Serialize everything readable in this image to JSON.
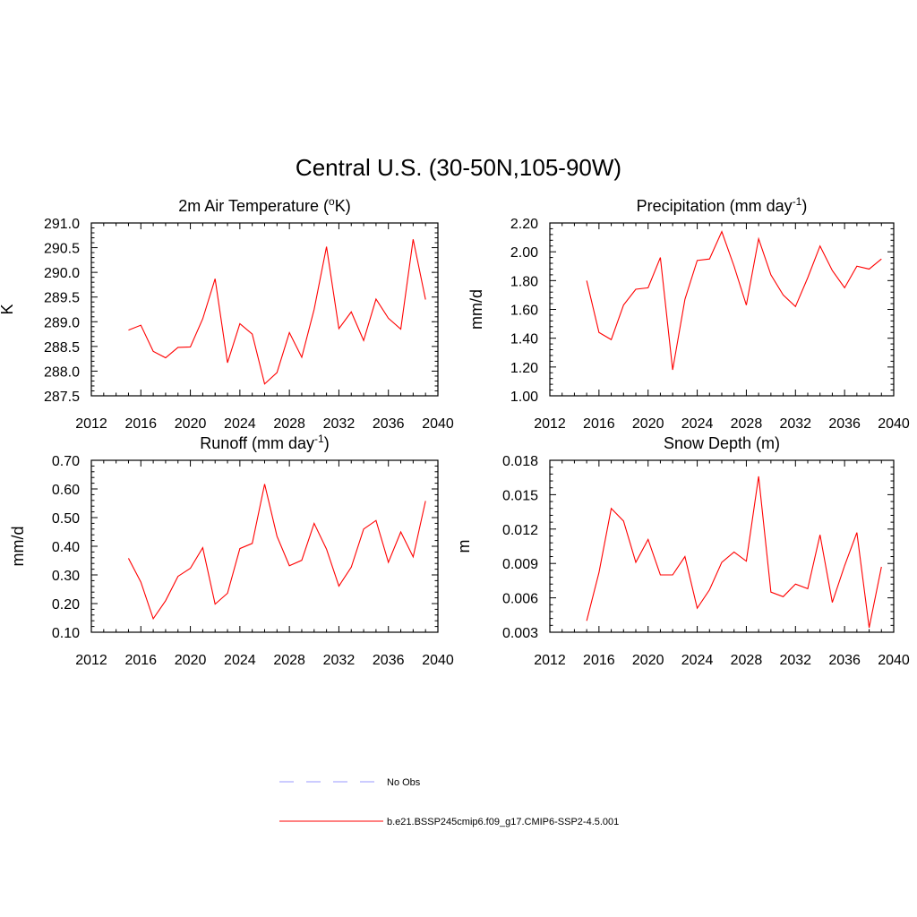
{
  "figure": {
    "title": "Central U.S. (30-50N,105-90W)"
  },
  "colors": {
    "model_line": "#ff0000",
    "obs_line": "#9999ff",
    "axes": "#000000",
    "background": "#ffffff"
  },
  "legend": {
    "items": [
      {
        "label": "No Obs",
        "style": "dashed",
        "color": "#9999ff"
      },
      {
        "label": "b.e21.BSSP245cmip6.f09_g17.CMIP6-SSP2-4.5.001",
        "style": "solid",
        "color": "#ff0000"
      }
    ]
  },
  "chart_data": [
    {
      "type": "line",
      "title": "2m Air Temperature (",
      "title_sup": "o",
      "title_suffix": "K)",
      "xlabel": "",
      "ylabel": "K",
      "xlim": [
        2012,
        2040
      ],
      "ylim": [
        287.5,
        291.0
      ],
      "x_ticks": [
        "2012",
        "2016",
        "2020",
        "2024",
        "2028",
        "2032",
        "2036",
        "2040"
      ],
      "y_ticks": [
        "287.5",
        "288.0",
        "288.5",
        "289.0",
        "289.5",
        "290.0",
        "290.5",
        "291.0"
      ],
      "x": [
        2015,
        2016,
        2017,
        2018,
        2019,
        2020,
        2021,
        2022,
        2023,
        2024,
        2025,
        2026,
        2027,
        2028,
        2029,
        2030,
        2031,
        2032,
        2033,
        2034,
        2035,
        2036,
        2037,
        2038,
        2039
      ],
      "series": [
        {
          "values": [
            288.83,
            288.93,
            288.4,
            288.27,
            288.48,
            288.49,
            289.06,
            289.87,
            288.17,
            288.96,
            288.75,
            287.74,
            287.97,
            288.78,
            288.28,
            289.25,
            290.52,
            288.86,
            289.2,
            288.62,
            289.46,
            289.07,
            288.85,
            290.67,
            289.45
          ]
        }
      ]
    },
    {
      "type": "line",
      "title": "Precipitation (mm day",
      "title_sup": "-1",
      "title_suffix": ")",
      "xlabel": "",
      "ylabel": "mm/d",
      "xlim": [
        2012,
        2040
      ],
      "ylim": [
        1.0,
        2.2
      ],
      "x_ticks": [
        "2012",
        "2016",
        "2020",
        "2024",
        "2028",
        "2032",
        "2036",
        "2040"
      ],
      "y_ticks": [
        "1.00",
        "1.20",
        "1.40",
        "1.60",
        "1.80",
        "2.00",
        "2.20"
      ],
      "x": [
        2015,
        2016,
        2017,
        2018,
        2019,
        2020,
        2021,
        2022,
        2023,
        2024,
        2025,
        2026,
        2027,
        2028,
        2029,
        2030,
        2031,
        2032,
        2033,
        2034,
        2035,
        2036,
        2037,
        2038,
        2039
      ],
      "series": [
        {
          "values": [
            1.8,
            1.44,
            1.39,
            1.63,
            1.74,
            1.75,
            1.96,
            1.18,
            1.67,
            1.94,
            1.95,
            2.14,
            1.9,
            1.63,
            2.09,
            1.84,
            1.7,
            1.62,
            1.82,
            2.04,
            1.87,
            1.75,
            1.9,
            1.88,
            1.95
          ]
        }
      ]
    },
    {
      "type": "line",
      "title": "Runoff (mm day",
      "title_sup": "-1",
      "title_suffix": ")",
      "xlabel": "",
      "ylabel": "mm/d",
      "xlim": [
        2012,
        2040
      ],
      "ylim": [
        0.1,
        0.7
      ],
      "x_ticks": [
        "2012",
        "2016",
        "2020",
        "2024",
        "2028",
        "2032",
        "2036",
        "2040"
      ],
      "y_ticks": [
        "0.10",
        "0.20",
        "0.30",
        "0.40",
        "0.50",
        "0.60",
        "0.70"
      ],
      "x": [
        2015,
        2016,
        2017,
        2018,
        2019,
        2020,
        2021,
        2022,
        2023,
        2024,
        2025,
        2026,
        2027,
        2028,
        2029,
        2030,
        2031,
        2032,
        2033,
        2034,
        2035,
        2036,
        2037,
        2038,
        2039
      ],
      "series": [
        {
          "values": [
            0.358,
            0.275,
            0.147,
            0.21,
            0.295,
            0.323,
            0.395,
            0.198,
            0.236,
            0.392,
            0.41,
            0.617,
            0.435,
            0.332,
            0.351,
            0.48,
            0.39,
            0.261,
            0.327,
            0.46,
            0.49,
            0.344,
            0.45,
            0.363,
            0.558
          ]
        }
      ]
    },
    {
      "type": "line",
      "title": "Snow Depth (m)",
      "title_sup": "",
      "title_suffix": "",
      "xlabel": "",
      "ylabel": "m",
      "xlim": [
        2012,
        2040
      ],
      "ylim": [
        0.003,
        0.018
      ],
      "x_ticks": [
        "2012",
        "2016",
        "2020",
        "2024",
        "2028",
        "2032",
        "2036",
        "2040"
      ],
      "y_ticks": [
        "0.003",
        "0.006",
        "0.009",
        "0.012",
        "0.015",
        "0.018"
      ],
      "x": [
        2015,
        2016,
        2017,
        2018,
        2019,
        2020,
        2021,
        2022,
        2023,
        2024,
        2025,
        2026,
        2027,
        2028,
        2029,
        2030,
        2031,
        2032,
        2033,
        2034,
        2035,
        2036,
        2037,
        2038,
        2039
      ],
      "series": [
        {
          "values": [
            0.004,
            0.0082,
            0.0138,
            0.0127,
            0.0091,
            0.0111,
            0.008,
            0.008,
            0.0096,
            0.0051,
            0.0067,
            0.0091,
            0.01,
            0.0092,
            0.0166,
            0.0065,
            0.0061,
            0.0072,
            0.0068,
            0.0115,
            0.0056,
            0.0088,
            0.0117,
            0.0034,
            0.0087
          ]
        }
      ]
    }
  ]
}
